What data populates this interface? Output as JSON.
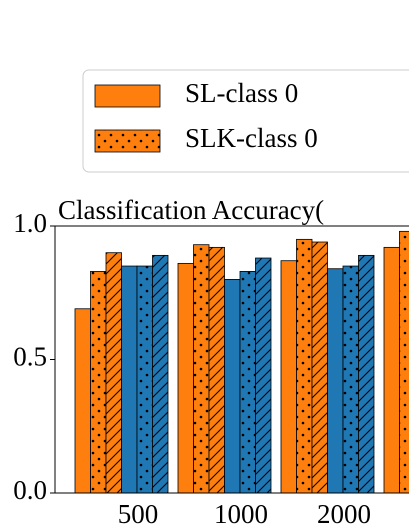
{
  "chart_data": {
    "type": "bar",
    "title": "Classification Accuracy(",
    "categories": [
      "500",
      "1000",
      "2000",
      null
    ],
    "series": [
      {
        "name": "SL-class 0",
        "color": "#ff7f0e",
        "hatch": "none",
        "values": [
          0.69,
          0.86,
          0.87,
          0.92
        ]
      },
      {
        "name": "SLK-class 0",
        "color": "#ff7f0e",
        "hatch": "dots",
        "values": [
          0.83,
          0.93,
          0.95,
          0.98
        ]
      },
      {
        "color": "#ff7f0e",
        "hatch": "slash",
        "values": [
          0.9,
          0.92,
          0.94,
          null
        ]
      },
      {
        "color": "#1f77b4",
        "hatch": "none",
        "values": [
          0.85,
          0.8,
          0.84,
          null
        ]
      },
      {
        "color": "#1f77b4",
        "hatch": "dots",
        "values": [
          0.85,
          0.83,
          0.85,
          null
        ]
      },
      {
        "color": "#1f77b4",
        "hatch": "slash",
        "values": [
          0.89,
          0.88,
          0.89,
          null
        ]
      }
    ],
    "ylim": [
      0,
      1
    ],
    "yticks": [
      {
        "value": 0,
        "label": "0.0"
      },
      {
        "value": 0.5,
        "label": "0.5"
      },
      {
        "value": 1,
        "label": "1.0"
      }
    ],
    "legend": "top"
  }
}
